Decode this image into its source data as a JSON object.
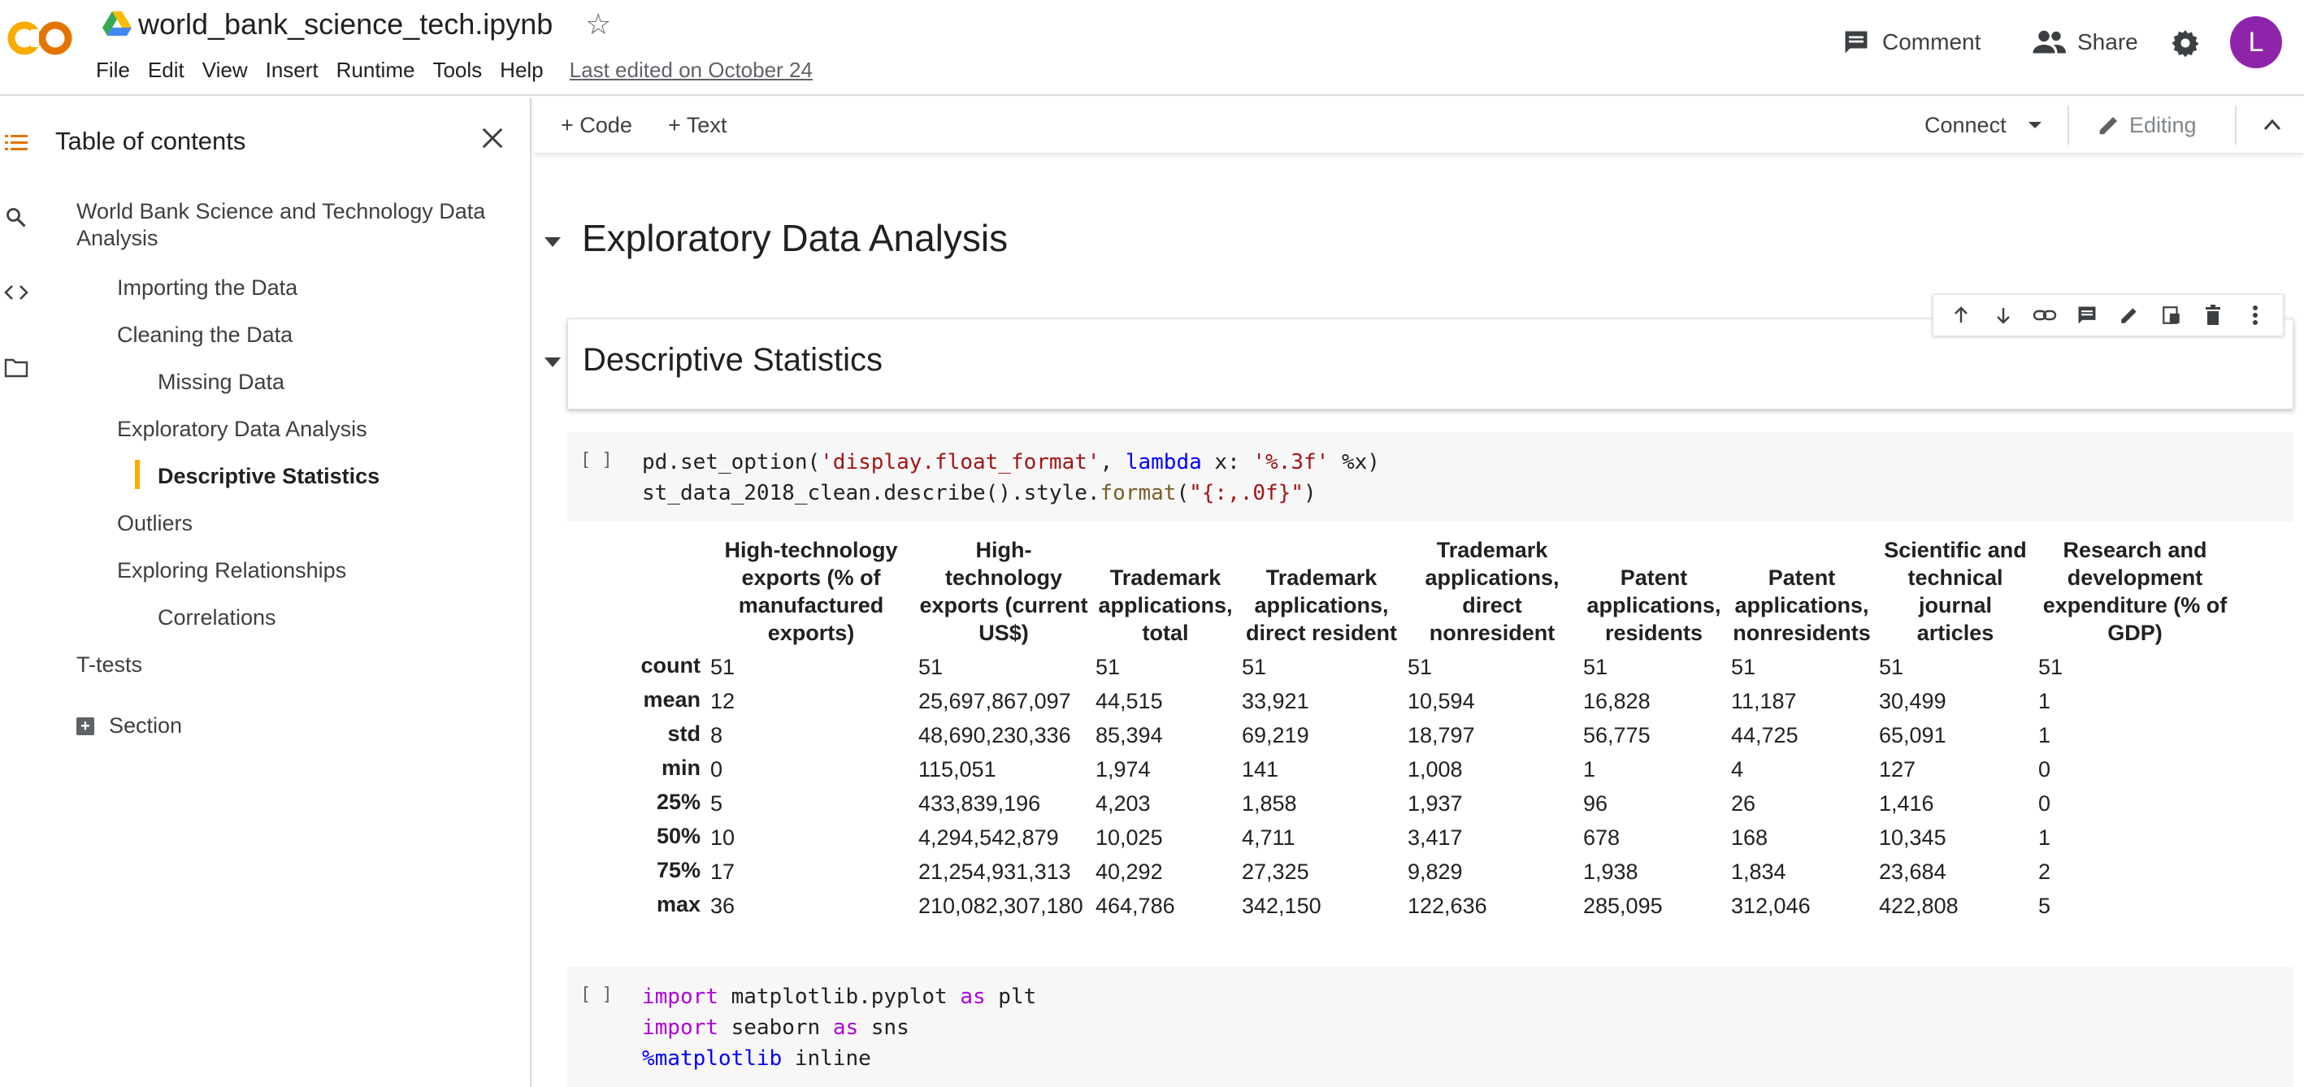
{
  "app": {
    "title": "world_bank_science_tech.ipynb",
    "menu": [
      "File",
      "Edit",
      "View",
      "Insert",
      "Runtime",
      "Tools",
      "Help"
    ],
    "last_edited": "Last edited on October 24",
    "comment_label": "Comment",
    "share_label": "Share",
    "avatar_letter": "L",
    "avatar_color": "#8e24aa",
    "logo_color": "#f9ab00"
  },
  "sidebar": {
    "title": "Table of contents",
    "items": [
      {
        "label": "World Bank Science and Technology Data Analysis",
        "level": 1
      },
      {
        "label": "Importing the Data",
        "level": 2
      },
      {
        "label": "Cleaning the Data",
        "level": 2
      },
      {
        "label": "Missing Data",
        "level": 3
      },
      {
        "label": "Exploratory Data Analysis",
        "level": 2
      },
      {
        "label": "Descriptive Statistics",
        "level": 3,
        "active": true
      },
      {
        "label": "Outliers",
        "level": 2
      },
      {
        "label": "Exploring Relationships",
        "level": 2
      },
      {
        "label": "Correlations",
        "level": 3
      },
      {
        "label": "T-tests",
        "level": 1
      }
    ],
    "add_section_label": "Section"
  },
  "toolbar": {
    "code_label": "Code",
    "text_label": "Text",
    "connect_label": "Connect",
    "editing_label": "Editing"
  },
  "notebook": {
    "heading_eda": "Exploratory Data Analysis",
    "heading_ds": "Descriptive Statistics",
    "cell1_bracket": "[ ]",
    "cell2_bracket": "[ ]",
    "cell1_code": [
      "pd.set_option('display.float_format', lambda x: '%.3f' %x)",
      "st_data_2018_clean.describe().style.format(\"{:,.0f}\")"
    ],
    "cell2_code": [
      "import matplotlib.pyplot as plt",
      "import seaborn as sns",
      "%matplotlib inline"
    ]
  },
  "table": {
    "columns": [
      "High-technology exports (% of manufactured exports)",
      "High-technology exports (current US$)",
      "Trademark applications, total",
      "Trademark applications, direct resident",
      "Trademark applications, direct nonresident",
      "Patent applications, residents",
      "Patent applications, nonresidents",
      "Scientific and technical journal articles",
      "Research and development expenditure (% of GDP)"
    ],
    "rows": [
      {
        "label": "count",
        "values": [
          "51",
          "51",
          "51",
          "51",
          "51",
          "51",
          "51",
          "51",
          "51"
        ]
      },
      {
        "label": "mean",
        "values": [
          "12",
          "25,697,867,097",
          "44,515",
          "33,921",
          "10,594",
          "16,828",
          "11,187",
          "30,499",
          "1"
        ]
      },
      {
        "label": "std",
        "values": [
          "8",
          "48,690,230,336",
          "85,394",
          "69,219",
          "18,797",
          "56,775",
          "44,725",
          "65,091",
          "1"
        ]
      },
      {
        "label": "min",
        "values": [
          "0",
          "115,051",
          "1,974",
          "141",
          "1,008",
          "1",
          "4",
          "127",
          "0"
        ]
      },
      {
        "label": "25%",
        "values": [
          "5",
          "433,839,196",
          "4,203",
          "1,858",
          "1,937",
          "96",
          "26",
          "1,416",
          "0"
        ]
      },
      {
        "label": "50%",
        "values": [
          "10",
          "4,294,542,879",
          "10,025",
          "4,711",
          "3,417",
          "678",
          "168",
          "10,345",
          "1"
        ]
      },
      {
        "label": "75%",
        "values": [
          "17",
          "21,254,931,313",
          "40,292",
          "27,325",
          "9,829",
          "1,938",
          "1,834",
          "23,684",
          "2"
        ]
      },
      {
        "label": "max",
        "values": [
          "36",
          "210,082,307,180",
          "464,786",
          "342,150",
          "122,636",
          "285,095",
          "312,046",
          "422,808",
          "5"
        ]
      }
    ]
  }
}
